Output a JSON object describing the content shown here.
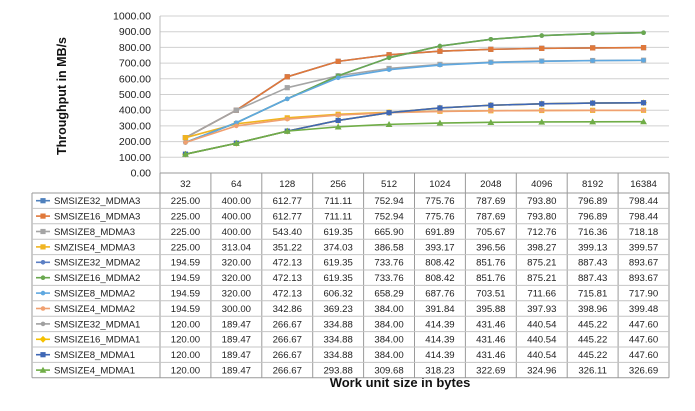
{
  "chart_data": {
    "type": "line",
    "title": "",
    "xlabel": "Work unit size in bytes",
    "ylabel": "Throughput in MB/s",
    "ylim": [
      0,
      1000
    ],
    "yticks": [
      "0.00",
      "100.00",
      "200.00",
      "300.00",
      "400.00",
      "500.00",
      "600.00",
      "700.00",
      "800.00",
      "900.00",
      "1000.00"
    ],
    "grid": true,
    "legend": "data-table-left",
    "categories": [
      "32",
      "64",
      "128",
      "256",
      "512",
      "1024",
      "2048",
      "4096",
      "8192",
      "16384"
    ],
    "series": [
      {
        "name": "SMSIZE32_MDMA3",
        "color": "#4f81bd",
        "marker": "square",
        "values": [
          225.0,
          400.0,
          612.77,
          711.11,
          752.94,
          775.76,
          787.69,
          793.8,
          796.89,
          798.44
        ],
        "labels": [
          "225.00",
          "400.00",
          "612.77",
          "711.11",
          "752.94",
          "775.76",
          "787.69",
          "793.80",
          "796.89",
          "798.44"
        ]
      },
      {
        "name": "SMSIZE16_MDMA3",
        "color": "#e0783a",
        "marker": "square",
        "values": [
          225.0,
          400.0,
          612.77,
          711.11,
          752.94,
          775.76,
          787.69,
          793.8,
          796.89,
          798.44
        ],
        "labels": [
          "225.00",
          "400.00",
          "612.77",
          "711.11",
          "752.94",
          "775.76",
          "787.69",
          "793.80",
          "796.89",
          "798.44"
        ]
      },
      {
        "name": "SMSIZE8_MDMA3",
        "color": "#a5a5a5",
        "marker": "square",
        "values": [
          225.0,
          400.0,
          543.4,
          619.35,
          665.9,
          691.89,
          705.67,
          712.76,
          716.36,
          718.18
        ],
        "labels": [
          "225.00",
          "400.00",
          "543.40",
          "619.35",
          "665.90",
          "691.89",
          "705.67",
          "712.76",
          "716.36",
          "718.18"
        ]
      },
      {
        "name": "SMZISE4_MDMA3",
        "color": "#f0b420",
        "marker": "square",
        "values": [
          225.0,
          313.04,
          351.22,
          374.03,
          386.58,
          393.17,
          396.56,
          398.27,
          399.13,
          399.57
        ],
        "labels": [
          "225.00",
          "313.04",
          "351.22",
          "374.03",
          "386.58",
          "393.17",
          "396.56",
          "398.27",
          "399.13",
          "399.57"
        ]
      },
      {
        "name": "SMSIZE32_MDMA2",
        "color": "#5b7fc4",
        "marker": "dot",
        "values": [
          194.59,
          320.0,
          472.13,
          619.35,
          733.76,
          808.42,
          851.76,
          875.21,
          887.43,
          893.67
        ],
        "labels": [
          "194.59",
          "320.00",
          "472.13",
          "619.35",
          "733.76",
          "808.42",
          "851.76",
          "875.21",
          "887.43",
          "893.67"
        ]
      },
      {
        "name": "SMSIZE16_MDMA2",
        "color": "#6aa84f",
        "marker": "dot",
        "values": [
          194.59,
          320.0,
          472.13,
          619.35,
          733.76,
          808.42,
          851.76,
          875.21,
          887.43,
          893.67
        ],
        "labels": [
          "194.59",
          "320.00",
          "472.13",
          "619.35",
          "733.76",
          "808.42",
          "851.76",
          "875.21",
          "887.43",
          "893.67"
        ]
      },
      {
        "name": "SMSIZE8_MDMA2",
        "color": "#5fa8e0",
        "marker": "dot",
        "values": [
          194.59,
          320.0,
          472.13,
          606.32,
          658.29,
          687.76,
          703.51,
          711.66,
          715.81,
          717.9
        ],
        "labels": [
          "194.59",
          "320.00",
          "472.13",
          "606.32",
          "658.29",
          "687.76",
          "703.51",
          "711.66",
          "715.81",
          "717.90"
        ]
      },
      {
        "name": "SMSIZE4_MDMA2",
        "color": "#f0a070",
        "marker": "dot",
        "values": [
          194.59,
          300.0,
          342.86,
          369.23,
          384.0,
          391.84,
          395.88,
          397.93,
          398.96,
          399.48
        ],
        "labels": [
          "194.59",
          "300.00",
          "342.86",
          "369.23",
          "384.00",
          "391.84",
          "395.88",
          "397.93",
          "398.96",
          "399.48"
        ]
      },
      {
        "name": "SMSIZE32_MDMA1",
        "color": "#a0a0a0",
        "marker": "dot",
        "values": [
          120.0,
          189.47,
          266.67,
          334.88,
          384.0,
          414.39,
          431.46,
          440.54,
          445.22,
          447.6
        ],
        "labels": [
          "120.00",
          "189.47",
          "266.67",
          "334.88",
          "384.00",
          "414.39",
          "431.46",
          "440.54",
          "445.22",
          "447.60"
        ]
      },
      {
        "name": "SMSIZE16_MDMA1",
        "color": "#f5c000",
        "marker": "diamond",
        "values": [
          120.0,
          189.47,
          266.67,
          334.88,
          384.0,
          414.39,
          431.46,
          440.54,
          445.22,
          447.6
        ],
        "labels": [
          "120.00",
          "189.47",
          "266.67",
          "334.88",
          "384.00",
          "414.39",
          "431.46",
          "440.54",
          "445.22",
          "447.60"
        ]
      },
      {
        "name": "SMSIZE8_MDMA1",
        "color": "#3f67b5",
        "marker": "square",
        "values": [
          120.0,
          189.47,
          266.67,
          334.88,
          384.0,
          414.39,
          431.46,
          440.54,
          445.22,
          447.6
        ],
        "labels": [
          "120.00",
          "189.47",
          "266.67",
          "334.88",
          "384.00",
          "414.39",
          "431.46",
          "440.54",
          "445.22",
          "447.60"
        ]
      },
      {
        "name": "SMSIZE4_MDMA1",
        "color": "#70ad47",
        "marker": "triangle",
        "values": [
          120.0,
          189.47,
          266.67,
          293.88,
          309.68,
          318.23,
          322.69,
          324.96,
          326.11,
          326.69
        ],
        "labels": [
          "120.00",
          "189.47",
          "266.67",
          "293.88",
          "309.68",
          "318.23",
          "322.69",
          "324.96",
          "326.11",
          "326.69"
        ]
      }
    ]
  }
}
